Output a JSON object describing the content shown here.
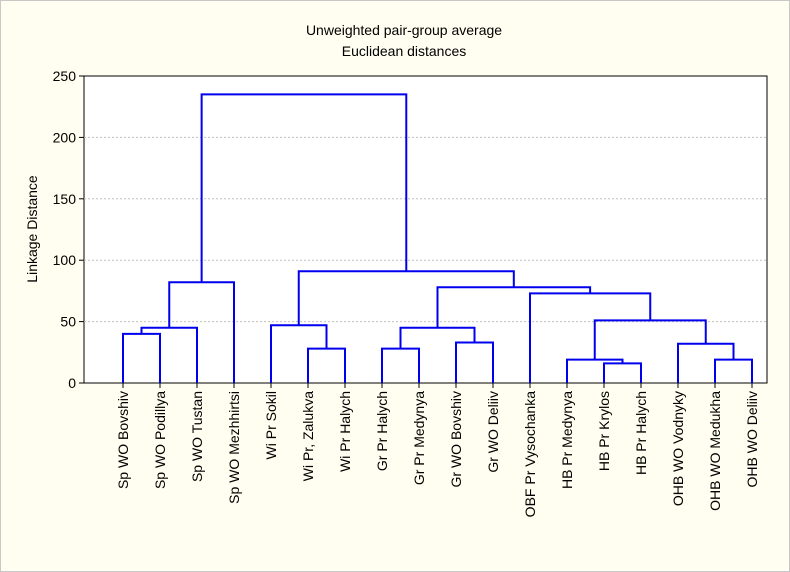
{
  "chart_data": {
    "type": "dendrogram",
    "title": [
      "Unweighted pair-group average",
      "Euclidean distances"
    ],
    "ylabel": "Linkage Distance",
    "ylim": [
      0,
      250
    ],
    "yticks": [
      0,
      50,
      100,
      150,
      200,
      250
    ],
    "grid": true,
    "colors": {
      "line": "#0000ee",
      "grid": "#c0c0c0",
      "background": "#fffef0",
      "plot_background": "#ffffff"
    },
    "leaves": [
      "Sp WO Bovshiv",
      "Sp WO Podillya",
      "Sp WO Tustan",
      "Sp  WO Mezhhirtsi",
      "Wi Pr Sokil",
      "Wi Pr, Zalukva",
      "Wi Pr Halych",
      "Gr Pr Halych",
      "Gr Pr Medynya",
      "Gr WO Bovshiv",
      "Gr WO Deliiv",
      "OBF Pr Vysochanka",
      "HB Pr Medynya",
      "HB  Pr Krylos",
      "HB Pr Halych",
      "OHB WO Vodnyky",
      "OHB  WO Medukha",
      "OHB WO Deliiv"
    ],
    "merges": [
      {
        "a": "L0",
        "b": "L1",
        "h": 40
      },
      {
        "a": "M0",
        "b": "L2",
        "h": 45
      },
      {
        "a": "M1",
        "b": "L3",
        "h": 82
      },
      {
        "a": "L5",
        "b": "L6",
        "h": 28
      },
      {
        "a": "L4",
        "b": "M3",
        "h": 47
      },
      {
        "a": "L7",
        "b": "L8",
        "h": 28
      },
      {
        "a": "L9",
        "b": "L10",
        "h": 33
      },
      {
        "a": "M5",
        "b": "M6",
        "h": 45
      },
      {
        "a": "L13",
        "b": "L14",
        "h": 16
      },
      {
        "a": "L12",
        "b": "M8",
        "h": 19
      },
      {
        "a": "L16",
        "b": "L17",
        "h": 19
      },
      {
        "a": "L15",
        "b": "M10",
        "h": 32
      },
      {
        "a": "M9",
        "b": "M11",
        "h": 51
      },
      {
        "a": "L11",
        "b": "M12",
        "h": 73
      },
      {
        "a": "M7",
        "b": "M13",
        "h": 78
      },
      {
        "a": "M4",
        "b": "M14",
        "h": 91
      },
      {
        "a": "M2",
        "b": "M15",
        "h": 235
      }
    ]
  }
}
